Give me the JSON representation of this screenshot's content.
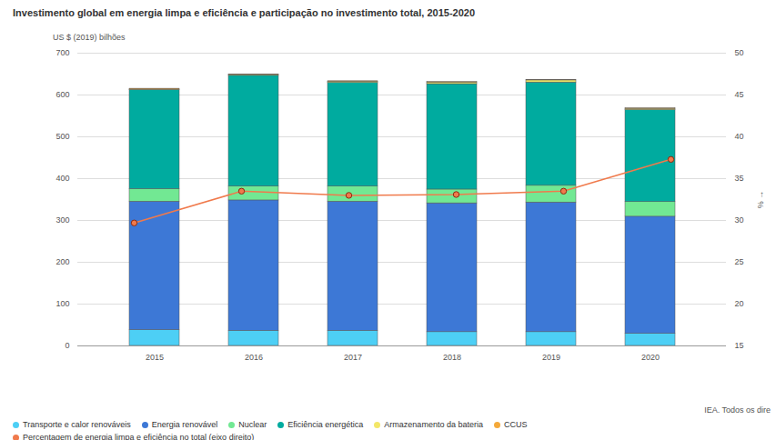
{
  "chart_data": {
    "type": "bar",
    "title": "Investimento global em energia limpa e eficiência e participação no investimento total, 2015-2020",
    "y_label": "US $ (2019) bilhões",
    "y2_label": "%",
    "source": "IEA. Todos os dire",
    "categories": [
      "2015",
      "2016",
      "2017",
      "2018",
      "2019",
      "2020"
    ],
    "stacked": true,
    "grid": true,
    "legend": "bottom",
    "ylim": [
      0,
      700
    ],
    "yticks": [
      0,
      100,
      200,
      300,
      400,
      500,
      600,
      700
    ],
    "y2lim": [
      15,
      50
    ],
    "y2ticks": [
      15,
      20,
      25,
      30,
      35,
      40,
      45,
      50
    ],
    "series": [
      {
        "name": "Transporte e calor renováveis",
        "type": "bar",
        "color": "#4dcff5",
        "values": [
          38,
          36,
          36,
          33,
          33,
          29
        ]
      },
      {
        "name": "Energia renovável",
        "type": "bar",
        "color": "#3d78d6",
        "values": [
          307,
          312,
          309,
          308,
          310,
          280
        ]
      },
      {
        "name": "Nuclear",
        "type": "bar",
        "color": "#72e893",
        "values": [
          30,
          33,
          36,
          33,
          40,
          35
        ]
      },
      {
        "name": "Eficiência energética",
        "type": "bar",
        "color": "#00ab9f",
        "values": [
          237,
          265,
          248,
          252,
          247,
          220
        ]
      },
      {
        "name": "Armazenamento da bateria",
        "type": "bar",
        "color": "#f3e768",
        "values": [
          1,
          2,
          3,
          4,
          5,
          3
        ]
      },
      {
        "name": "CCUS",
        "type": "bar",
        "color": "#f4a93a",
        "values": [
          2,
          1,
          1,
          1,
          1,
          1
        ]
      },
      {
        "name": "Percentagem de energia limpa e eficiência no total (eixo direito)",
        "type": "line",
        "axis": "y2",
        "marker": "circle",
        "color": "#f07a4c",
        "values": [
          29.7,
          33.5,
          33.0,
          33.1,
          33.5,
          37.3
        ]
      }
    ]
  }
}
